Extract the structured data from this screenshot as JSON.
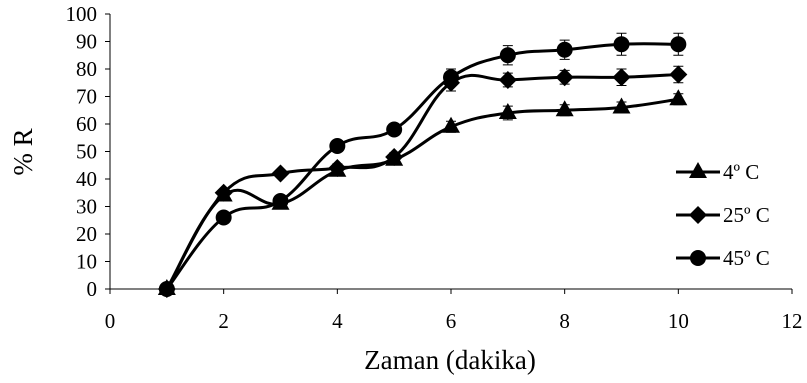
{
  "chart_data": {
    "type": "scatter",
    "title": "",
    "xlabel": "Zaman (dakika)",
    "ylabel": "% R",
    "xlim": [
      0,
      12
    ],
    "ylim": [
      0,
      100
    ],
    "x_ticks": [
      0,
      2,
      4,
      6,
      8,
      10,
      12
    ],
    "y_ticks": [
      0,
      10,
      20,
      30,
      40,
      50,
      60,
      70,
      80,
      90,
      100
    ],
    "grid": false,
    "legend_position": "right",
    "series": [
      {
        "name": "4º C",
        "marker": "triangle",
        "x": [
          1,
          2,
          3,
          4,
          5,
          6,
          7,
          8,
          9,
          10
        ],
        "values": [
          0,
          34,
          31,
          43,
          47,
          59,
          64,
          65,
          66,
          69
        ],
        "errors": [
          0,
          1,
          1,
          1.5,
          1.5,
          2,
          2.5,
          2,
          2,
          2
        ]
      },
      {
        "name": "25º C",
        "marker": "diamond",
        "x": [
          1,
          2,
          3,
          4,
          5,
          6,
          7,
          8,
          9,
          10
        ],
        "values": [
          0,
          35,
          42,
          44,
          48,
          75,
          76,
          77,
          77,
          78
        ],
        "errors": [
          0,
          1,
          1,
          1.5,
          1.5,
          3,
          2.5,
          2.5,
          3,
          3
        ]
      },
      {
        "name": "45º C",
        "marker": "circle",
        "x": [
          1,
          2,
          3,
          4,
          5,
          6,
          7,
          8,
          9,
          10
        ],
        "values": [
          0,
          26,
          32,
          52,
          58,
          77,
          85,
          87,
          89,
          89
        ],
        "errors": [
          0,
          1.5,
          1.5,
          2,
          2,
          3,
          3.5,
          3.5,
          4,
          4
        ]
      }
    ]
  }
}
